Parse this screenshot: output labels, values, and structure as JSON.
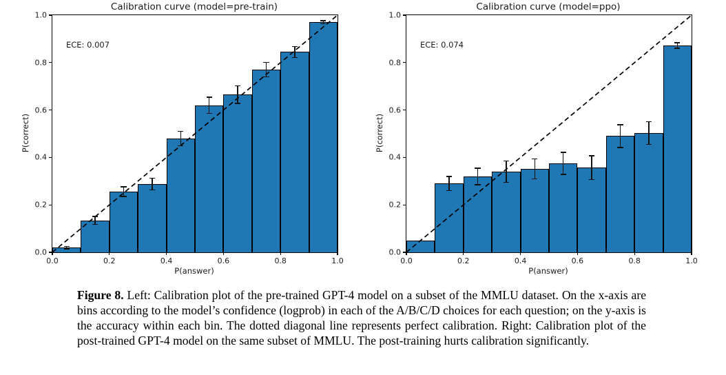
{
  "page": {
    "background": "#ffffff"
  },
  "caption": {
    "label": "Figure 8.",
    "text": "Left: Calibration plot of the pre-trained GPT-4 model on a subset of the MMLU dataset. On the x-axis are bins according to the model’s confidence (logprob) in each of the A/B/C/D choices for each question; on the y-axis is the accuracy within each bin. The dotted diagonal line represents perfect calibration. Right: Calibration plot of the post-trained GPT-4 model on the same subset of MMLU. The post-training hurts calibration significantly."
  },
  "chart_data": [
    {
      "type": "bar",
      "title": "Calibration curve (model=pre-train)",
      "annotation": "ECE: 0.007",
      "xlabel": "P(answer)",
      "ylabel": "P(correct)",
      "xlim": [
        0.0,
        1.0
      ],
      "ylim": [
        0.0,
        1.0
      ],
      "xticks": [
        "0.0",
        "0.2",
        "0.4",
        "0.6",
        "0.8",
        "1.0"
      ],
      "yticks": [
        "0.0",
        "0.2",
        "0.4",
        "0.6",
        "0.8",
        "1.0"
      ],
      "bin_left_edges": [
        0.0,
        0.1,
        0.2,
        0.3,
        0.4,
        0.5,
        0.6,
        0.7,
        0.8,
        0.9
      ],
      "bin_width": 0.1,
      "values": [
        0.02,
        0.134,
        0.256,
        0.288,
        0.48,
        0.62,
        0.665,
        0.77,
        0.845,
        0.97
      ],
      "error_low": [
        0.015,
        0.117,
        0.236,
        0.263,
        0.45,
        0.586,
        0.628,
        0.74,
        0.822,
        0.963
      ],
      "error_high": [
        0.025,
        0.151,
        0.276,
        0.313,
        0.51,
        0.654,
        0.702,
        0.8,
        0.868,
        0.977
      ],
      "diagonal_line": true,
      "bar_color": "#1f77b4",
      "bar_edge_color": "#000000",
      "line_color": "#000000",
      "grid": false,
      "legend": false
    },
    {
      "type": "bar",
      "title": "Calibration curve (model=ppo)",
      "annotation": "ECE: 0.074",
      "xlabel": "P(answer)",
      "ylabel": "P(correct)",
      "xlim": [
        0.0,
        1.0
      ],
      "ylim": [
        0.0,
        1.0
      ],
      "xticks": [
        "0.0",
        "0.2",
        "0.4",
        "0.6",
        "0.8",
        "1.0"
      ],
      "yticks": [
        "0.0",
        "0.2",
        "0.4",
        "0.6",
        "0.8",
        "1.0"
      ],
      "bin_left_edges": [
        0.0,
        0.1,
        0.2,
        0.3,
        0.4,
        0.5,
        0.6,
        0.7,
        0.8,
        0.9
      ],
      "bin_width": 0.1,
      "values": [
        0.05,
        0.29,
        0.32,
        0.34,
        0.352,
        0.375,
        0.357,
        0.49,
        0.503,
        0.872
      ],
      "error_low": [
        null,
        0.26,
        0.285,
        0.295,
        0.31,
        0.328,
        0.307,
        0.442,
        0.455,
        0.86
      ],
      "error_high": [
        null,
        0.32,
        0.355,
        0.385,
        0.394,
        0.422,
        0.407,
        0.538,
        0.551,
        0.884
      ],
      "diagonal_line": true,
      "bar_color": "#1f77b4",
      "bar_edge_color": "#000000",
      "line_color": "#000000",
      "grid": false,
      "legend": false
    }
  ]
}
